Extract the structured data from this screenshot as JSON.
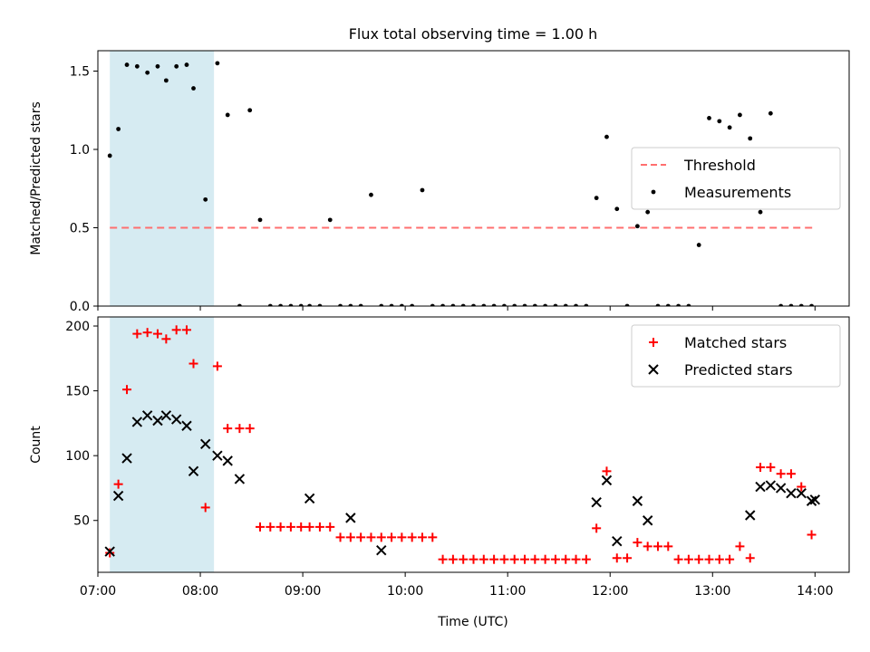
{
  "chart_data": {
    "type": "scatter",
    "title": "Flux total observing time = 1.00 h",
    "xlabel": "Time (UTC)",
    "x_is_time": true,
    "xlim": [
      "07:00",
      "14:20"
    ],
    "x_ticks": [
      "07:00",
      "08:00",
      "09:00",
      "10:00",
      "11:00",
      "12:00",
      "13:00",
      "14:00"
    ],
    "highlight_span": {
      "x": [
        "07:07",
        "08:08"
      ],
      "color": "#add8e6"
    },
    "panels": [
      {
        "ylabel": "Matched/Predicted stars",
        "ylim": [
          0,
          1.63
        ],
        "y_ticks": [
          "0.0",
          "0.5",
          "1.0",
          "1.5"
        ],
        "legend_position": "center-right",
        "series": [
          {
            "name": "Threshold",
            "kind": "line",
            "style": "dashed",
            "color": "#ff6f6f",
            "x": [
              "07:07",
              "14:00"
            ],
            "y": [
              0.5,
              0.5
            ]
          },
          {
            "name": "Measurements",
            "kind": "dot",
            "color": "#000000",
            "x": [
              "07:07",
              "07:12",
              "07:17",
              "07:23",
              "07:29",
              "07:35",
              "07:40",
              "07:46",
              "07:52",
              "07:56",
              "08:03",
              "08:10",
              "08:16",
              "08:23",
              "08:29",
              "08:35",
              "08:41",
              "08:47",
              "08:53",
              "08:59",
              "09:04",
              "09:10",
              "09:16",
              "09:22",
              "09:28",
              "09:34",
              "09:40",
              "09:46",
              "09:52",
              "09:58",
              "10:04",
              "10:10",
              "10:16",
              "10:22",
              "10:28",
              "10:34",
              "10:40",
              "10:46",
              "10:52",
              "10:58",
              "11:04",
              "11:10",
              "11:16",
              "11:22",
              "11:28",
              "11:34",
              "11:40",
              "11:46",
              "11:52",
              "11:58",
              "12:04",
              "12:10",
              "12:16",
              "12:22",
              "12:28",
              "12:34",
              "12:40",
              "12:46",
              "12:52",
              "12:58",
              "13:04",
              "13:10",
              "13:16",
              "13:22",
              "13:28",
              "13:34",
              "13:40",
              "13:46",
              "13:52",
              "13:58"
            ],
            "y": [
              0.96,
              1.13,
              1.54,
              1.53,
              1.49,
              1.53,
              1.44,
              1.53,
              1.54,
              1.39,
              0.68,
              1.55,
              1.22,
              0.0,
              1.25,
              0.55,
              0.0,
              0.0,
              0.0,
              0.0,
              0.0,
              0.0,
              0.55,
              0.0,
              0.0,
              0.0,
              0.71,
              0.0,
              0.0,
              0.0,
              0.0,
              0.74,
              0.0,
              0.0,
              0.0,
              0.0,
              0.0,
              0.0,
              0.0,
              0.0,
              0.0,
              0.0,
              0.0,
              0.0,
              0.0,
              0.0,
              0.0,
              0.0,
              0.69,
              1.08,
              0.62,
              0.0,
              0.51,
              0.6,
              0.0,
              0.0,
              0.0,
              0.0,
              0.39,
              1.2,
              1.18,
              1.14,
              1.22,
              1.07,
              0.6,
              1.23,
              0.0,
              0.0,
              0.0,
              0.0
            ]
          }
        ]
      },
      {
        "ylabel": "Count",
        "ylim": [
          10,
          207
        ],
        "y_ticks": [
          "50",
          "100",
          "150",
          "200"
        ],
        "legend_position": "top-right",
        "series": [
          {
            "name": "Matched stars",
            "kind": "plus",
            "color": "#ff0000",
            "x": [
              "07:07",
              "07:12",
              "07:17",
              "07:23",
              "07:29",
              "07:35",
              "07:40",
              "07:46",
              "07:52",
              "07:56",
              "08:03",
              "08:10",
              "08:16",
              "08:23",
              "08:29",
              "08:35",
              "08:41",
              "08:47",
              "08:53",
              "08:59",
              "09:04",
              "09:10",
              "09:16",
              "09:22",
              "09:28",
              "09:34",
              "09:40",
              "09:46",
              "09:52",
              "09:58",
              "10:04",
              "10:10",
              "10:16",
              "10:22",
              "10:28",
              "10:34",
              "10:40",
              "10:46",
              "10:52",
              "10:58",
              "11:04",
              "11:10",
              "11:16",
              "11:22",
              "11:28",
              "11:34",
              "11:40",
              "11:46",
              "11:52",
              "11:58",
              "12:04",
              "12:10",
              "12:16",
              "12:22",
              "12:28",
              "12:34",
              "12:40",
              "12:46",
              "12:52",
              "12:58",
              "13:04",
              "13:10",
              "13:16",
              "13:22",
              "13:28",
              "13:34",
              "13:40",
              "13:46",
              "13:52",
              "13:58"
            ],
            "y": [
              25,
              78,
              151,
              194,
              195,
              194,
              190,
              197,
              197,
              171,
              60,
              169,
              121,
              121,
              121,
              45,
              45,
              45,
              45,
              45,
              45,
              45,
              45,
              37,
              37,
              37,
              37,
              37,
              37,
              37,
              37,
              37,
              37,
              20,
              20,
              20,
              20,
              20,
              20,
              20,
              20,
              20,
              20,
              20,
              20,
              20,
              20,
              20,
              44,
              88,
              21,
              21,
              33,
              30,
              30,
              30,
              20,
              20,
              20,
              20,
              20,
              20,
              30,
              21,
              91,
              91,
              86,
              86,
              76,
              39
            ]
          },
          {
            "name": "Predicted stars",
            "kind": "x",
            "color": "#000000",
            "x": [
              "07:07",
              "07:12",
              "07:17",
              "07:23",
              "07:29",
              "07:35",
              "07:40",
              "07:46",
              "07:52",
              "07:56",
              "08:03",
              "08:10",
              "08:16",
              "08:23",
              "09:04",
              "09:28",
              "09:46",
              "11:52",
              "11:58",
              "12:04",
              "12:16",
              "12:22",
              "13:22",
              "13:28",
              "13:34",
              "13:40",
              "13:46",
              "13:52",
              "13:58",
              "14:00"
            ],
            "y": [
              26,
              69,
              98,
              126,
              131,
              127,
              131,
              128,
              123,
              88,
              109,
              100,
              96,
              82,
              67,
              52,
              27,
              64,
              81,
              34,
              65,
              50,
              54,
              76,
              77,
              75,
              71,
              71,
              65,
              66
            ]
          }
        ]
      }
    ]
  }
}
